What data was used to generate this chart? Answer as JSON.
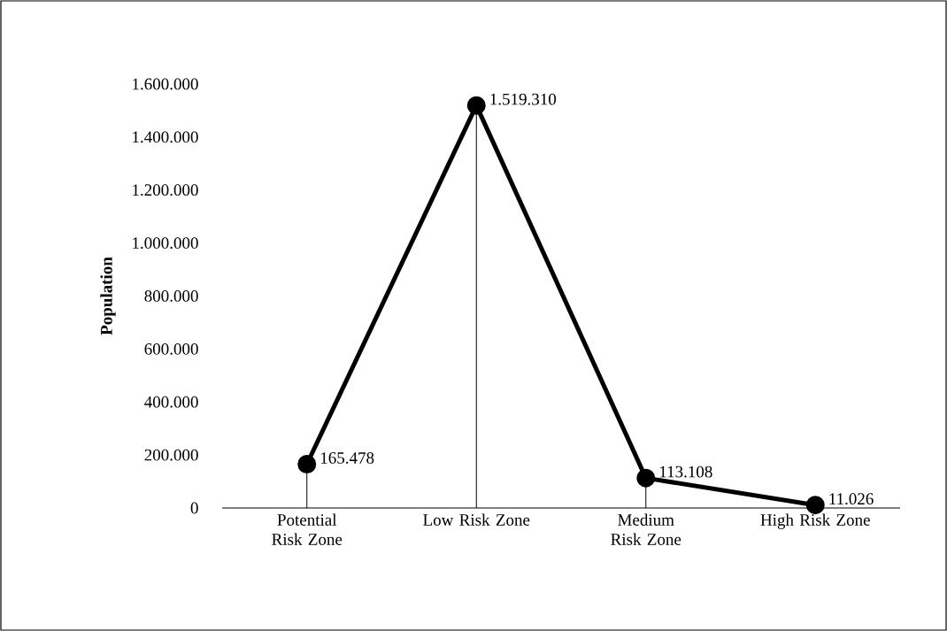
{
  "chart_data": {
    "type": "line",
    "ylabel": "Population",
    "categories": [
      "Potential Risk Zone",
      "Low Risk Zone",
      "Medium Risk Zone",
      "High Risk Zone"
    ],
    "values": [
      165478,
      1519310,
      113108,
      11026
    ],
    "value_labels": [
      "165.478",
      "1.519.310",
      "113.108",
      "11.026"
    ],
    "color": "#000000",
    "marker": "circle",
    "line_style": "solid",
    "ylim": [
      0,
      1600000
    ],
    "yticks": [
      0,
      {
        "value": 200000,
        "label": "200.000"
      },
      {
        "value": 400000,
        "label": "400.000"
      },
      {
        "value": 600000,
        "label": "600.000"
      },
      {
        "value": 800000,
        "label": "800.000"
      },
      {
        "value": 1000000,
        "label": "1.000.000"
      },
      {
        "value": 1200000,
        "label": "1.200.000"
      },
      {
        "value": 1400000,
        "label": "1.400.000"
      },
      {
        "value": 1600000,
        "label": "1.600.000"
      }
    ]
  }
}
